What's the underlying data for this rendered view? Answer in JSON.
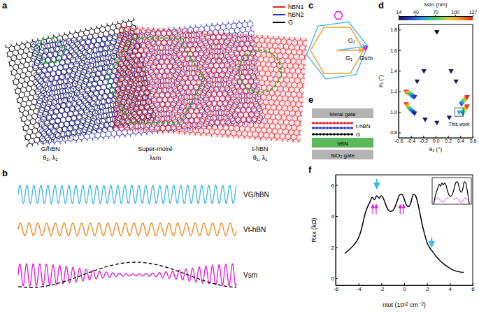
{
  "panels": {
    "a": {
      "letter": "a",
      "legend": [
        {
          "name": "hBN1",
          "color": "#e8202a"
        },
        {
          "name": "hBN2",
          "color": "#2a30d0"
        },
        {
          "name": "G",
          "color": "#000000"
        }
      ],
      "regions": [
        {
          "label": "G/hBN",
          "params": "θ₂, λ₂"
        },
        {
          "label": "Super-moiré",
          "params": "λsm"
        },
        {
          "label": "t-hBN",
          "params": "θ₁, λ₁"
        }
      ]
    },
    "b": {
      "letter": "b",
      "waves": [
        {
          "label": "VG/hBN",
          "color": "#45b8e6"
        },
        {
          "label": "Vt-hBN",
          "color": "#f08a1e"
        },
        {
          "label": "Vsm",
          "color": "#e020d8"
        }
      ]
    },
    "c": {
      "letter": "c",
      "vectors": [
        {
          "label": "G₂",
          "color": "#45b8e6"
        },
        {
          "label": "G₁",
          "color": "#f0a030"
        },
        {
          "label": "Gsm",
          "color": "#e020d8"
        }
      ]
    },
    "e": {
      "letter": "e",
      "layers": [
        {
          "label": "Metal gate",
          "kind": "box",
          "color": "#b4b4b4"
        },
        {
          "label": "t-hBN",
          "kind": "atoms",
          "colors": [
            "#e8202a",
            "#2a30d0"
          ]
        },
        {
          "label": "G",
          "kind": "atoms",
          "colors": [
            "#000000"
          ]
        },
        {
          "label": "hBN",
          "kind": "box",
          "color": "#5cb85c"
        },
        {
          "label": "SiO₂ gate",
          "kind": "box",
          "color": "#b4b4b4"
        }
      ]
    }
  },
  "chart_data": [
    {
      "type": "scatter",
      "panel": "d",
      "xlabel": "θ₂ (°)",
      "ylabel": "θ₁ (°)",
      "xlim": [
        -0.6,
        0.6
      ],
      "ylim": [
        0.75,
        1.85
      ],
      "xticks": [
        -0.6,
        -0.4,
        -0.2,
        {
          "value": 0,
          "label": "0.0"
        },
        0.2,
        0.4,
        0.6
      ],
      "yticks": [
        0.8,
        {
          "value": 1,
          "label": "1.0"
        },
        1.2,
        1.4,
        1.6,
        1.8
      ],
      "marker": "triangle-down",
      "series": [
        {
          "x": [
            -0.48,
            -0.47,
            -0.46,
            -0.45,
            -0.44,
            -0.43,
            -0.42,
            -0.41,
            -0.4,
            -0.39,
            -0.37,
            -0.36,
            -0.34,
            -0.48,
            -0.47,
            -0.46,
            -0.45,
            -0.43,
            -0.42,
            -0.4,
            -0.38,
            -0.36,
            -0.34,
            -0.3,
            -0.19,
            -0.17,
            0.02,
            0.22,
            0.25,
            0.33,
            0.38,
            0.42,
            0.43,
            0.45,
            0.46,
            0.47,
            0.49,
            0.5,
            0.51,
            0.44,
            0.45,
            0.46,
            0.47,
            0.48,
            0.49,
            0.5,
            0.51
          ],
          "values": [
            1.2,
            1.2,
            1.19,
            1.19,
            1.19,
            1.18,
            1.18,
            1.17,
            1.17,
            1.16,
            1.16,
            1.15,
            1.15,
            1.08,
            1.07,
            1.06,
            1.05,
            1.04,
            1.03,
            1.02,
            1.01,
            1.0,
            0.99,
            1.3,
            1.4,
            0.93,
            0.9,
            0.95,
            1.4,
            1.3,
            1.0,
            1.08,
            1.09,
            1.1,
            1.11,
            1.12,
            1.13,
            1.14,
            1.15,
            0.99,
            1.0,
            1.01,
            1.02,
            1.03,
            1.04,
            1.05,
            1.06
          ],
          "lambda": [
            127,
            118,
            110,
            102,
            94,
            86,
            78,
            70,
            62,
            54,
            46,
            38,
            30,
            127,
            115,
            103,
            91,
            79,
            67,
            55,
            43,
            31,
            20,
            14,
            14,
            14,
            14,
            14,
            14,
            14,
            62,
            30,
            44,
            58,
            72,
            86,
            100,
            114,
            127,
            40,
            52,
            64,
            76,
            88,
            100,
            112,
            124
          ]
        },
        {
          "x": [
            0.02
          ],
          "values": [
            1.78
          ],
          "color": "#000000"
        }
      ],
      "colorbar": {
        "label": "λsm (nm)",
        "range": [
          14,
          127
        ],
        "ticks": [
          14,
          40,
          70,
          100,
          127
        ]
      },
      "annotations": [
        {
          "text": "This work",
          "x": 0.38,
          "y": 1.0
        }
      ]
    },
    {
      "type": "line",
      "panel": "f",
      "xlabel": "ntot (10¹² cm⁻²)",
      "ylabel": "Rxx (kΩ)",
      "xlim": [
        -6,
        6
      ],
      "ylim": [
        -0.45,
        6.65
      ],
      "xticks": [
        -6,
        -4,
        -2,
        0,
        2,
        4,
        6
      ],
      "yticks": [
        0,
        2,
        4,
        6
      ],
      "x": [
        -5.2,
        -4.8,
        -4.4,
        -4.0,
        -3.8,
        -3.6,
        -3.4,
        -3.2,
        -3.0,
        -2.8,
        -2.6,
        -2.4,
        -2.2,
        -2.0,
        -1.8,
        -1.6,
        -1.4,
        -1.2,
        -1.0,
        -0.8,
        -0.6,
        -0.4,
        -0.2,
        0.0,
        0.2,
        0.4,
        0.6,
        0.8,
        1.0,
        1.2,
        1.4,
        1.6,
        1.8,
        2.0,
        2.2,
        2.4,
        2.6,
        2.8,
        3.2,
        3.6,
        4.0,
        4.4,
        4.8,
        5.2
      ],
      "series": [
        {
          "color": "#000000",
          "values": [
            1.6,
            1.85,
            2.15,
            2.6,
            3.0,
            3.6,
            4.2,
            4.6,
            4.9,
            5.2,
            5.05,
            5.3,
            5.15,
            5.3,
            5.1,
            4.7,
            4.4,
            4.3,
            4.35,
            4.6,
            5.0,
            5.35,
            5.4,
            5.1,
            4.7,
            4.6,
            4.9,
            5.4,
            5.3,
            4.8,
            4.1,
            3.4,
            2.8,
            2.3,
            2.0,
            1.8,
            1.6,
            1.4,
            1.1,
            0.85,
            0.65,
            0.5,
            0.42,
            0.38
          ]
        }
      ],
      "arrows": [
        {
          "x": -2.4,
          "y": 5.75,
          "direction": "down",
          "color": "#45b8e6"
        },
        {
          "x": 2.4,
          "y": 2.0,
          "direction": "down",
          "color": "#45b8e6"
        },
        {
          "x": -2.75,
          "y": 4.75,
          "direction": "up",
          "color": "#e020d8"
        },
        {
          "x": -2.45,
          "y": 4.75,
          "direction": "up",
          "color": "#e020d8"
        },
        {
          "x": -0.35,
          "y": 4.75,
          "direction": "up",
          "color": "#e020d8"
        },
        {
          "x": -0.05,
          "y": 4.75,
          "direction": "up",
          "color": "#e020d8"
        }
      ],
      "inset": {
        "xlim": [
          -3.6,
          1.6
        ],
        "ylim": [
          3.8,
          5.6
        ]
      }
    }
  ]
}
